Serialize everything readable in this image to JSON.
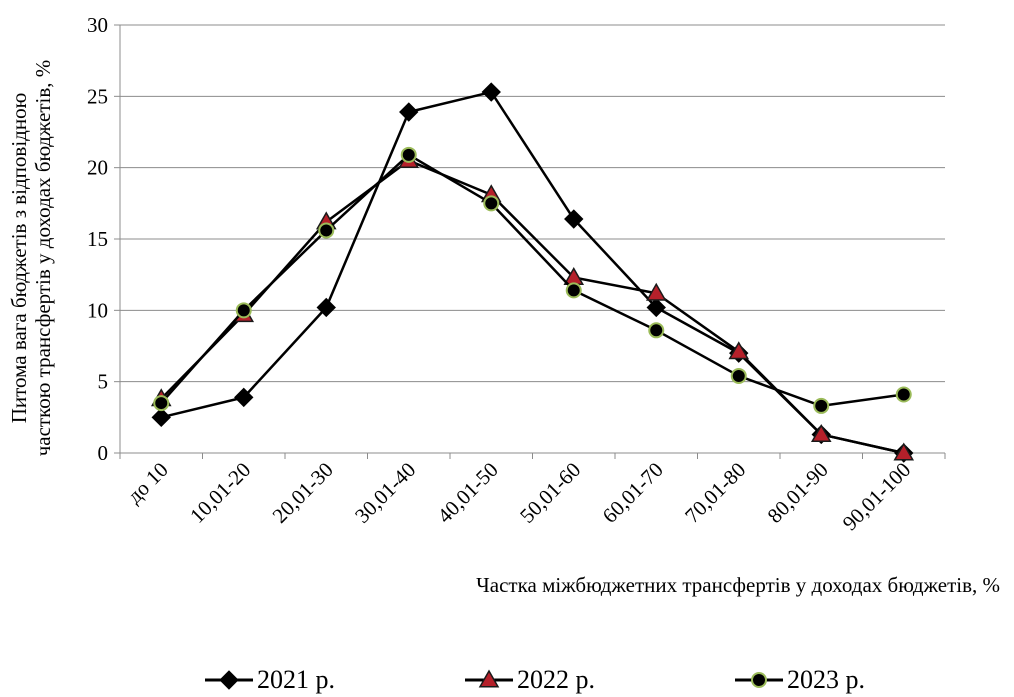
{
  "chart_data": {
    "type": "line",
    "title": "",
    "xlabel": "Частка міжбюджетних трансфертів у доходах бюджетів, %",
    "ylabel_lines": [
      "Питома вага бюджетів з відповідною",
      "часткою трансфертів у доходах бюджетів, %"
    ],
    "categories": [
      "до 10",
      "10,01-20",
      "20,01-30",
      "30,01-40",
      "40,01-50",
      "50,01-60",
      "60,01-70",
      "70,01-80",
      "80,01-90",
      "90,01-100"
    ],
    "ylim": [
      0,
      30
    ],
    "yticks": [
      0,
      5,
      10,
      15,
      20,
      25,
      30
    ],
    "grid": true,
    "legend_position": "bottom",
    "series": [
      {
        "name": "2021 р.",
        "marker": "diamond",
        "color": "#000000",
        "marker_fill": "#000000",
        "marker_stroke": "#000000",
        "values": [
          2.5,
          3.9,
          10.2,
          23.9,
          25.3,
          16.4,
          10.2,
          7.0,
          1.3,
          0.0
        ]
      },
      {
        "name": "2022 р.",
        "marker": "triangle",
        "color": "#000000",
        "marker_fill": "#b5202a",
        "marker_stroke": "#1a1a1a",
        "values": [
          3.8,
          9.7,
          16.2,
          20.5,
          18.1,
          12.3,
          11.2,
          7.1,
          1.3,
          0.0
        ]
      },
      {
        "name": "2023 р.",
        "marker": "circle",
        "color": "#000000",
        "marker_fill": "#000000",
        "marker_stroke": "#9bbb59",
        "values": [
          3.5,
          10.0,
          15.6,
          20.9,
          17.5,
          11.4,
          8.6,
          5.4,
          3.3,
          4.1
        ]
      }
    ]
  }
}
